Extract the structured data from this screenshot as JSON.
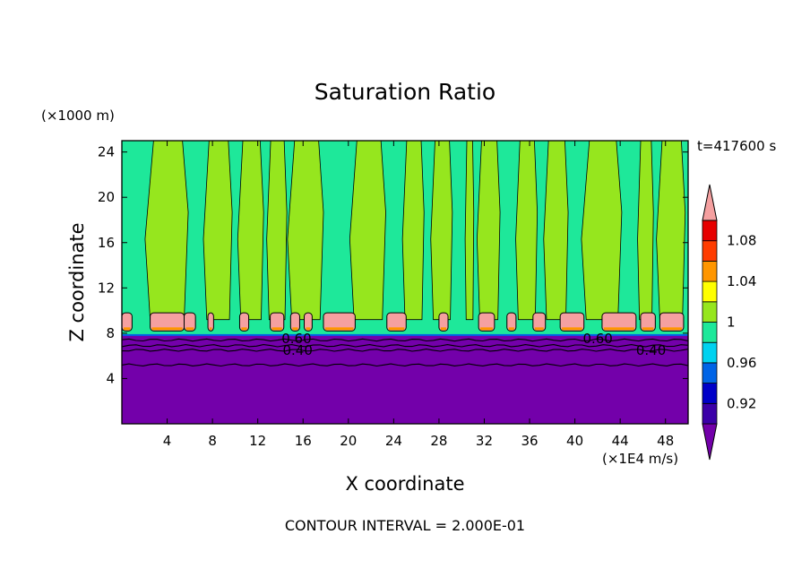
{
  "chart_data": {
    "type": "heatmap",
    "title": "Saturation Ratio",
    "xlabel": "X coordinate",
    "ylabel": "Z coordinate",
    "x_unit": "(×1E4 m/s)",
    "y_unit": "(×1000 m)",
    "time_label": "t=417600 s",
    "contour_interval": "CONTOUR INTERVAL = 2.000E-01",
    "xlim": [
      0,
      50
    ],
    "ylim": [
      0,
      25
    ],
    "x_ticks": [
      4,
      8,
      12,
      16,
      20,
      24,
      28,
      32,
      36,
      40,
      44,
      48
    ],
    "y_ticks": [
      4,
      8,
      12,
      16,
      20,
      24
    ],
    "contour_line_labels": [
      {
        "text": "0.60",
        "x": 14.1,
        "z": 7.5
      },
      {
        "text": "0.40",
        "x": 14.2,
        "z": 6.5
      },
      {
        "text": "0.60",
        "x": 40.7,
        "z": 7.5
      },
      {
        "text": "0.40",
        "x": 45.4,
        "z": 6.5
      }
    ],
    "colorbar": {
      "levels": [
        0.9,
        0.92,
        0.94,
        0.96,
        0.98,
        1.0,
        1.02,
        1.04,
        1.06,
        1.08,
        1.1
      ],
      "labels": [
        "0.92",
        "0.96",
        "1",
        "1.04",
        "1.08"
      ],
      "colors": [
        "#7300aa",
        "#3b00a8",
        "#0000c8",
        "#0064e6",
        "#00d2f0",
        "#1ee89a",
        "#96e61e",
        "#ffff00",
        "#ff9600",
        "#ff3c00",
        "#e60000",
        "#f5a0a0"
      ]
    },
    "series": [
      {
        "name": "",
        "region": "lower",
        "z_range": [
          0,
          7.8
        ],
        "value_range": [
          0.3,
          0.9
        ]
      },
      {
        "name": "",
        "region": "upper",
        "z_range": [
          7.8,
          25
        ],
        "value_range": [
          0.99,
          1.02
        ]
      }
    ],
    "columns_above_1": [
      [
        2.5,
        5.5
      ],
      [
        7.5,
        9.5
      ],
      [
        10.5,
        12.3
      ],
      [
        13,
        14.4
      ],
      [
        15,
        17.5
      ],
      [
        20.5,
        23
      ],
      [
        25,
        26.5
      ],
      [
        27.5,
        29
      ],
      [
        30.4,
        31
      ],
      [
        31.6,
        33.2
      ],
      [
        35,
        36.5
      ],
      [
        37.5,
        39.2
      ],
      [
        41,
        43.8
      ],
      [
        45.7,
        46.8
      ],
      [
        47.5,
        49.5
      ]
    ],
    "hot_blobs_at_z9": [
      [
        0,
        0.9
      ],
      [
        2.5,
        5.5
      ],
      [
        5.5,
        6.5
      ],
      [
        7.6,
        8.1
      ],
      [
        10.4,
        11.2
      ],
      [
        13.1,
        14.3
      ],
      [
        14.9,
        15.7
      ],
      [
        16.1,
        16.8
      ],
      [
        17.8,
        20.6
      ],
      [
        23.4,
        25.1
      ],
      [
        28,
        28.8
      ],
      [
        31.5,
        32.9
      ],
      [
        34,
        34.8
      ],
      [
        36.3,
        37.4
      ],
      [
        38.7,
        40.8
      ],
      [
        42.4,
        45.4
      ],
      [
        45.8,
        47.1
      ],
      [
        47.5,
        49.6
      ]
    ]
  }
}
